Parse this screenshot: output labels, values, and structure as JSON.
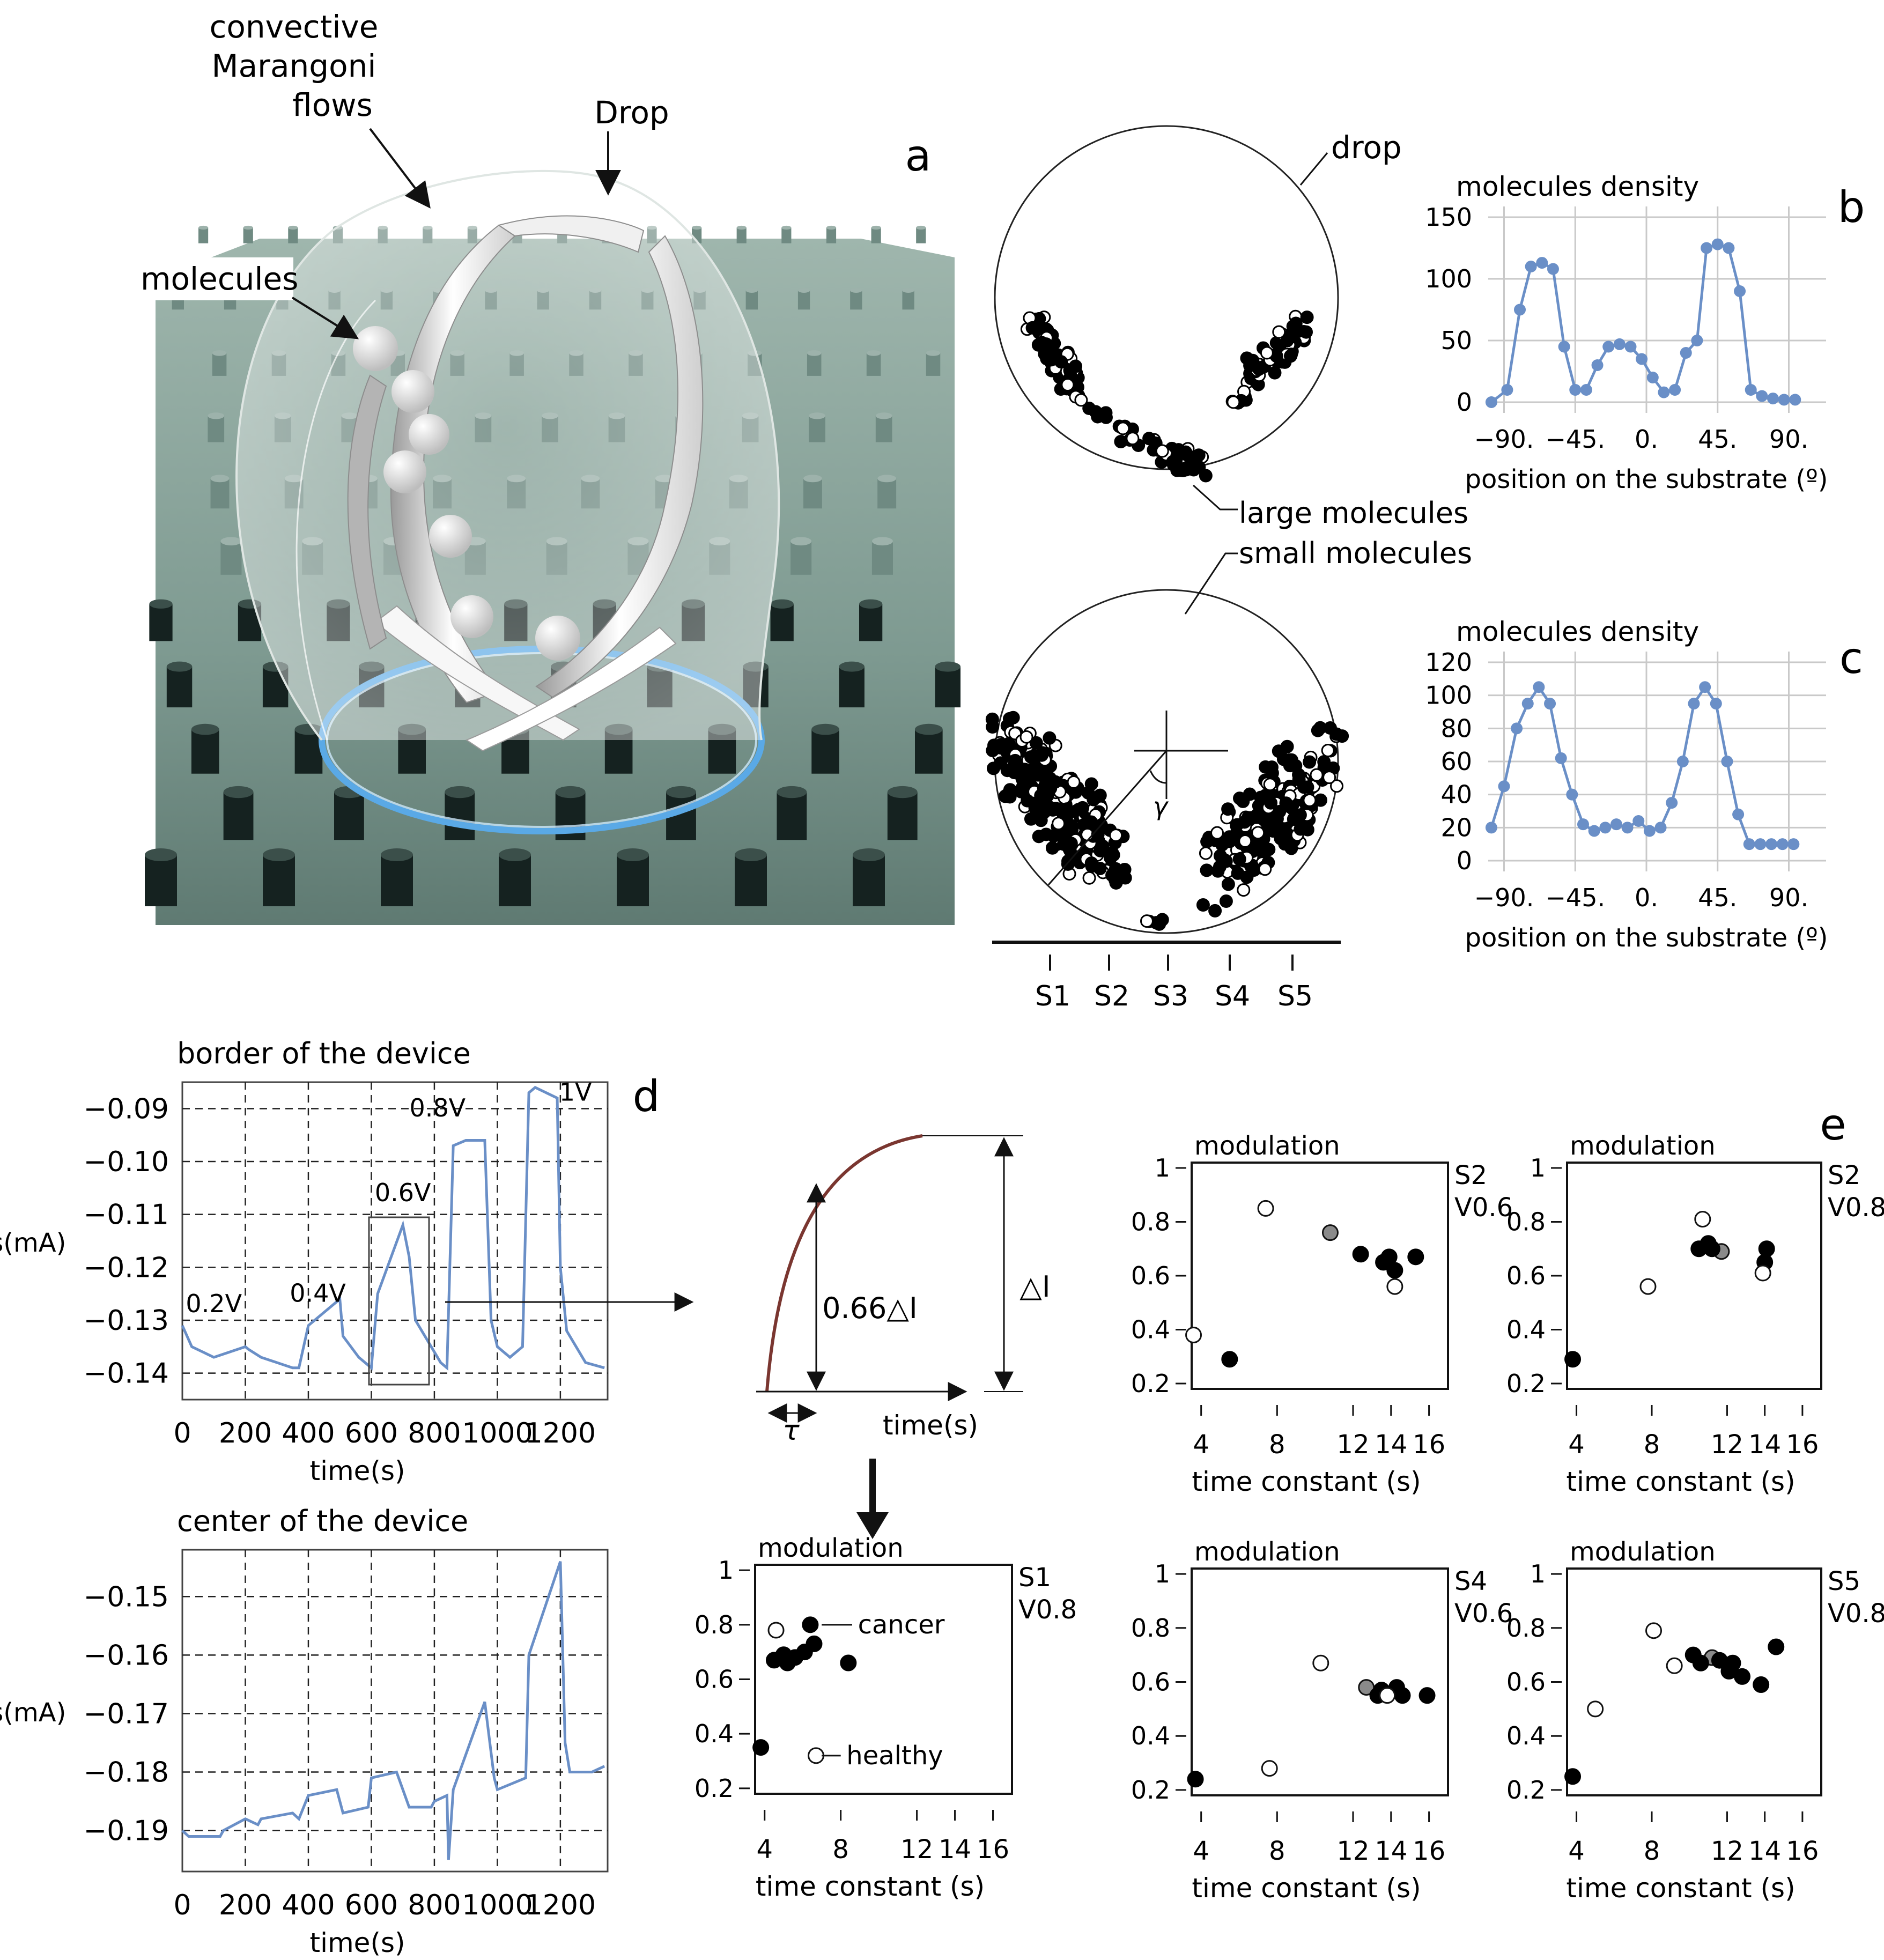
{
  "panel_a": {
    "letter": "a",
    "labels": {
      "convective": "convective",
      "marangoni": "Marangoni",
      "flows": "flows",
      "drop_top": "Drop",
      "molecules": "molecules",
      "drop_circle": "drop",
      "large": "large molecules",
      "small": "small molecules",
      "gamma": "γ"
    },
    "substrates": [
      "S1",
      "S2",
      "S3",
      "S4",
      "S5"
    ]
  },
  "panel_d": {
    "letter": "d",
    "border_title": "border of the device",
    "center_title": "center of the device",
    "ylabel": "Ids(mA)",
    "xlabel": "time(s)",
    "voltages": [
      "0.2V",
      "0.4V",
      "0.6V",
      "0.8V",
      "1V"
    ],
    "tau_label": "τ",
    "time_label": "time(s)",
    "frac_label": "0.66△I",
    "delta_label": "△I"
  },
  "panel_e": {
    "letter": "e"
  },
  "legend": {
    "cancer": "cancer",
    "healthy": "healthy"
  },
  "chart_data": [
    {
      "id": "b",
      "type": "line",
      "title": "molecules density",
      "xlabel": "position on the substrate (º)",
      "xticks": [
        "−90.",
        "−45.",
        "0.",
        "45.",
        "90."
      ],
      "xlim": [
        -100,
        100
      ],
      "ylim": [
        0,
        150
      ],
      "yticks": [
        0,
        50,
        100,
        150
      ],
      "color": "#6a8fc7",
      "x": [
        -98,
        -88,
        -80,
        -73,
        -66,
        -59,
        -52,
        -45,
        -38,
        -31,
        -24,
        -17,
        -10,
        -3,
        4,
        11,
        18,
        25,
        32,
        38,
        45,
        52,
        59,
        66,
        73,
        80,
        87,
        94
      ],
      "y": [
        0,
        10,
        75,
        110,
        113,
        108,
        45,
        10,
        10,
        30,
        45,
        47,
        45,
        35,
        20,
        8,
        10,
        40,
        50,
        125,
        128,
        125,
        90,
        10,
        5,
        3,
        2,
        2
      ]
    },
    {
      "id": "c",
      "type": "line",
      "title": "molecules density",
      "xlabel": "position on the substrate (º)",
      "xticks": [
        "−90.",
        "−45.",
        "0.",
        "45.",
        "90."
      ],
      "xlim": [
        -100,
        100
      ],
      "ylim": [
        0,
        120
      ],
      "yticks": [
        0,
        20,
        40,
        60,
        80,
        100,
        120
      ],
      "color": "#6a8fc7",
      "x": [
        -98,
        -90,
        -82,
        -75,
        -68,
        -61,
        -54,
        -47,
        -40,
        -33,
        -26,
        -19,
        -12,
        -5,
        2,
        9,
        16,
        23,
        30,
        37,
        44,
        51,
        58,
        65,
        72,
        79,
        86,
        93
      ],
      "y": [
        20,
        45,
        80,
        95,
        105,
        95,
        62,
        40,
        22,
        18,
        20,
        22,
        20,
        24,
        18,
        20,
        35,
        60,
        95,
        105,
        95,
        60,
        28,
        10,
        10,
        10,
        10,
        10
      ]
    },
    {
      "id": "d-border",
      "type": "line",
      "title": "border of the device",
      "xlabel": "time(s)",
      "ylabel": "Ids(mA)",
      "xticks": [
        0,
        200,
        400,
        600,
        800,
        1000,
        1200
      ],
      "yticks": [
        "−0.09",
        "−0.10",
        "−0.11",
        "−0.12",
        "−0.13",
        "−0.14"
      ],
      "xlim": [
        0,
        1350
      ],
      "ylim": [
        -0.145,
        -0.085
      ],
      "color": "#6a8fc7",
      "x": [
        0,
        30,
        100,
        150,
        200,
        210,
        250,
        350,
        370,
        400,
        500,
        510,
        560,
        600,
        620,
        700,
        720,
        740,
        820,
        840,
        860,
        900,
        960,
        980,
        1000,
        1040,
        1080,
        1100,
        1120,
        1190,
        1200,
        1220,
        1280,
        1340
      ],
      "y": [
        -0.131,
        -0.135,
        -0.137,
        -0.136,
        -0.135,
        -0.1355,
        -0.137,
        -0.139,
        -0.139,
        -0.131,
        -0.126,
        -0.133,
        -0.137,
        -0.139,
        -0.125,
        -0.112,
        -0.118,
        -0.13,
        -0.138,
        -0.139,
        -0.097,
        -0.096,
        -0.096,
        -0.13,
        -0.135,
        -0.137,
        -0.135,
        -0.087,
        -0.086,
        -0.088,
        -0.12,
        -0.132,
        -0.138,
        -0.139
      ]
    },
    {
      "id": "d-center",
      "type": "line",
      "title": "center of the device",
      "xlabel": "time(s)",
      "ylabel": "Ids(mA)",
      "xticks": [
        0,
        200,
        400,
        600,
        800,
        1000,
        1200
      ],
      "yticks": [
        "−0.15",
        "−0.16",
        "−0.17",
        "−0.18",
        "−0.19"
      ],
      "xlim": [
        0,
        1350
      ],
      "ylim": [
        -0.197,
        -0.142
      ],
      "color": "#6a8fc7",
      "x": [
        0,
        20,
        120,
        130,
        200,
        240,
        250,
        350,
        370,
        400,
        490,
        510,
        590,
        600,
        680,
        700,
        720,
        790,
        800,
        840,
        845,
        860,
        960,
        990,
        1000,
        1090,
        1100,
        1200,
        1215,
        1230,
        1300,
        1340
      ],
      "y": [
        -0.19,
        -0.191,
        -0.191,
        -0.19,
        -0.188,
        -0.189,
        -0.188,
        -0.187,
        -0.188,
        -0.184,
        -0.183,
        -0.187,
        -0.186,
        -0.181,
        -0.18,
        -0.183,
        -0.186,
        -0.186,
        -0.185,
        -0.184,
        -0.195,
        -0.183,
        -0.168,
        -0.181,
        -0.183,
        -0.181,
        -0.16,
        -0.144,
        -0.175,
        -0.18,
        -0.18,
        -0.179
      ]
    },
    {
      "id": "s1-v08",
      "type": "scatter",
      "title": "modulation",
      "label": [
        "S1",
        "V0.8"
      ],
      "xlabel": "time constant (s)",
      "xticks": [
        4,
        8,
        12,
        14,
        16
      ],
      "xlim": [
        3.5,
        17
      ],
      "yticks": [
        1,
        0.8,
        0.6,
        0.4,
        0.2
      ],
      "ylim": [
        0.18,
        1.02
      ],
      "cancer": [
        [
          3.8,
          0.35
        ],
        [
          4.5,
          0.67
        ],
        [
          5.0,
          0.69
        ],
        [
          5.2,
          0.66
        ],
        [
          5.6,
          0.68
        ],
        [
          6.1,
          0.7
        ],
        [
          6.6,
          0.73
        ],
        [
          6.4,
          0.8
        ],
        [
          8.4,
          0.66
        ]
      ],
      "healthy": [
        [
          4.6,
          0.78
        ],
        [
          6.7,
          0.32
        ]
      ],
      "other": []
    },
    {
      "id": "s2-v06",
      "type": "scatter",
      "title": "modulation",
      "label": [
        "S2",
        "V0.6"
      ],
      "xlabel": "time constant (s)",
      "xticks": [
        4,
        8,
        12,
        14,
        16
      ],
      "xlim": [
        3.5,
        17
      ],
      "yticks": [
        1,
        0.8,
        0.6,
        0.4,
        0.2
      ],
      "ylim": [
        0.18,
        1.02
      ],
      "cancer": [
        [
          5.5,
          0.29
        ],
        [
          12.4,
          0.68
        ],
        [
          13.6,
          0.65
        ],
        [
          13.9,
          0.67
        ],
        [
          14.2,
          0.62
        ],
        [
          15.3,
          0.67
        ]
      ],
      "healthy": [
        [
          3.6,
          0.38
        ],
        [
          7.4,
          0.85
        ],
        [
          14.2,
          0.56
        ]
      ],
      "other": [
        [
          10.8,
          0.76
        ]
      ]
    },
    {
      "id": "s2-v08",
      "type": "scatter",
      "title": "modulation",
      "label": [
        "S2",
        "V0.8"
      ],
      "xlabel": "time constant (s)",
      "xticks": [
        4,
        8,
        12,
        14,
        16
      ],
      "xlim": [
        3.5,
        17
      ],
      "yticks": [
        1,
        0.8,
        0.6,
        0.4,
        0.2
      ],
      "ylim": [
        0.18,
        1.02
      ],
      "cancer": [
        [
          3.8,
          0.29
        ],
        [
          10.5,
          0.7
        ],
        [
          11.0,
          0.72
        ],
        [
          11.2,
          0.7
        ],
        [
          14.1,
          0.7
        ],
        [
          14.0,
          0.65
        ]
      ],
      "healthy": [
        [
          7.8,
          0.56
        ],
        [
          10.7,
          0.81
        ],
        [
          13.9,
          0.61
        ]
      ],
      "other": [
        [
          11.7,
          0.69
        ]
      ]
    },
    {
      "id": "s4-v06",
      "type": "scatter",
      "title": "modulation",
      "label": [
        "S4",
        "V0.6"
      ],
      "xlabel": "time constant (s)",
      "xticks": [
        4,
        8,
        12,
        14,
        16
      ],
      "xlim": [
        3.5,
        17
      ],
      "yticks": [
        1,
        0.8,
        0.6,
        0.4,
        0.2
      ],
      "ylim": [
        0.18,
        1.02
      ],
      "cancer": [
        [
          3.7,
          0.24
        ],
        [
          13.3,
          0.55
        ],
        [
          13.5,
          0.57
        ],
        [
          14.3,
          0.58
        ],
        [
          14.6,
          0.55
        ],
        [
          15.9,
          0.55
        ]
      ],
      "healthy": [
        [
          7.6,
          0.28
        ],
        [
          10.3,
          0.67
        ],
        [
          13.8,
          0.55
        ]
      ],
      "other": [
        [
          12.7,
          0.58
        ]
      ]
    },
    {
      "id": "s5-v08",
      "type": "scatter",
      "title": "modulation",
      "label": [
        "S5",
        "V0.8"
      ],
      "xlabel": "time constant (s)",
      "xticks": [
        4,
        8,
        12,
        14,
        16
      ],
      "xlim": [
        3.5,
        17
      ],
      "yticks": [
        1,
        0.8,
        0.6,
        0.4,
        0.2
      ],
      "ylim": [
        0.18,
        1.02
      ],
      "cancer": [
        [
          3.8,
          0.25
        ],
        [
          10.2,
          0.7
        ],
        [
          10.6,
          0.67
        ],
        [
          11.6,
          0.68
        ],
        [
          12.1,
          0.64
        ],
        [
          12.3,
          0.67
        ],
        [
          12.8,
          0.62
        ],
        [
          13.8,
          0.59
        ],
        [
          14.6,
          0.73
        ]
      ],
      "healthy": [
        [
          5.0,
          0.5
        ],
        [
          8.1,
          0.79
        ],
        [
          9.2,
          0.66
        ]
      ],
      "other": [
        [
          11.2,
          0.69
        ]
      ]
    }
  ]
}
